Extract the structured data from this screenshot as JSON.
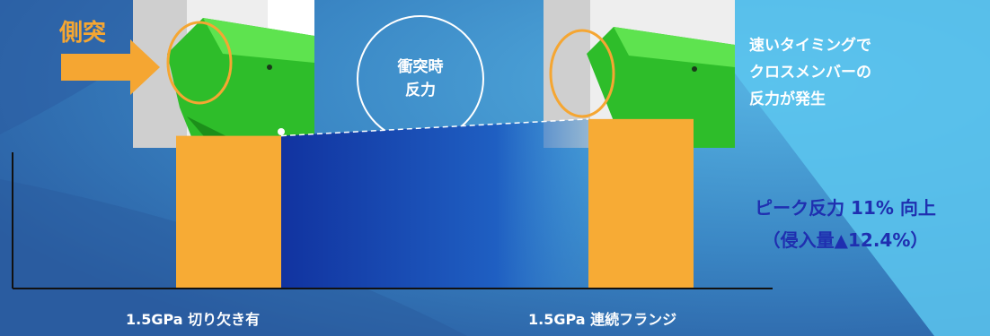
{
  "impact_label": "側突",
  "center_label": [
    "衝突時",
    "反力"
  ],
  "note_lines": [
    "速いタイミングで",
    "クロスメンバーの",
    "反力が発生"
  ],
  "peak_lines": [
    "ピーク反力 11% 向上",
    "（侵入量▲12.4%）"
  ],
  "chart_data": {
    "type": "bar",
    "categories": [
      "1.5GPa 切り欠き有",
      "1.5GPa 連続フランジ"
    ],
    "values": [
      1.0,
      1.11
    ],
    "ylim": [
      0,
      1.25
    ],
    "title": "",
    "xlabel": "",
    "ylabel": ""
  },
  "colors": {
    "bar": "#f7ab35",
    "accent": "#f5a632",
    "peak_text": "#1f2fb0",
    "part_green": "#2ebd2a"
  }
}
